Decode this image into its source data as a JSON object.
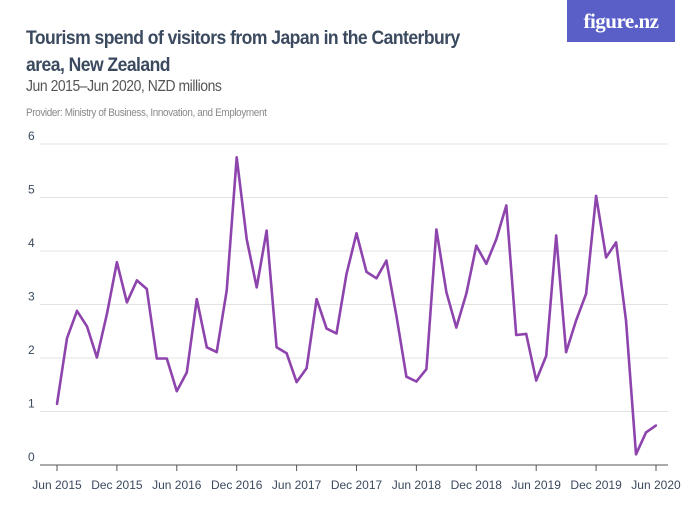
{
  "header": {
    "title": "Tourism spend of visitors from Japan in the Canterbury area, New Zealand",
    "subtitle": "Jun 2015–Jun 2020, NZD millions",
    "provider": "Provider: Ministry of Business, Innovation, and Employment",
    "logo_text": "figure.nz",
    "logo_color": "#5a5fc8"
  },
  "chart_data": {
    "type": "line",
    "title": "Tourism spend of visitors from Japan in the Canterbury area, New Zealand",
    "subtitle": "Jun 2015–Jun 2020, NZD millions",
    "xlabel": "",
    "ylabel": "",
    "ylim": [
      0,
      6
    ],
    "yticks": [
      "0",
      "1",
      "2",
      "3",
      "4",
      "5",
      "6"
    ],
    "xticks": [
      "Jun 2015",
      "Dec 2015",
      "Jun 2016",
      "Dec 2016",
      "Jun 2017",
      "Dec 2017",
      "Jun 2018",
      "Dec 2018",
      "Jun 2019",
      "Dec 2019",
      "Jun 2020"
    ],
    "x_start": "Jun 2015",
    "x_end": "Jun 2020",
    "frequency": "monthly",
    "grid": "horizontal",
    "line_color": "#8e44ad",
    "values": [
      1.14,
      2.37,
      2.88,
      2.59,
      2.01,
      2.82,
      3.79,
      3.04,
      3.45,
      3.29,
      1.99,
      1.99,
      1.38,
      1.73,
      3.1,
      2.2,
      2.11,
      3.26,
      5.75,
      4.22,
      3.32,
      4.38,
      2.2,
      2.09,
      1.55,
      1.81,
      3.1,
      2.55,
      2.46,
      3.57,
      4.33,
      3.61,
      3.49,
      3.82,
      2.79,
      1.65,
      1.56,
      1.79,
      4.4,
      3.23,
      2.57,
      3.2,
      4.1,
      3.76,
      4.22,
      4.85,
      2.43,
      2.45,
      1.58,
      2.04,
      4.29,
      2.11,
      2.7,
      3.2,
      5.03,
      3.88,
      4.16,
      2.7,
      0.2,
      0.61,
      0.74
    ]
  }
}
